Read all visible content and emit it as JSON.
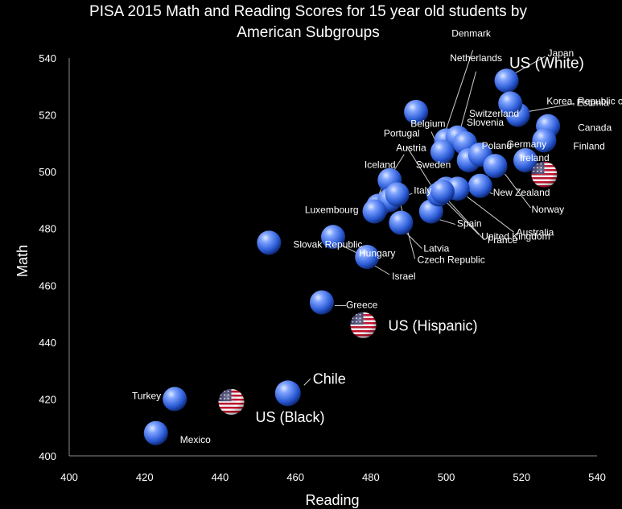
{
  "chart_data": {
    "type": "scatter",
    "title": "PISA 2015 Math and Reading Scores for 15 year old students by American Subgroups",
    "title_lines": [
      "PISA 2015 Math and Reading Scores for 15 year old students by",
      "American Subgroups"
    ],
    "xlabel": "Reading",
    "ylabel": "Math",
    "xlim": [
      400,
      540
    ],
    "ylim": [
      400,
      540
    ],
    "xticks": [
      400,
      420,
      440,
      460,
      480,
      500,
      520,
      540
    ],
    "yticks": [
      400,
      420,
      440,
      460,
      480,
      500,
      520,
      540
    ],
    "grid": false,
    "colors": {
      "background": "#000000",
      "text": "#ffffff",
      "bubble_light": "#a8c4ff",
      "bubble_mid": "#3b6fe0",
      "bubble_dark": "#0d2a78",
      "flag_red": "#c8102e",
      "flag_white": "#ffffff",
      "flag_blue": "#3c3b6e"
    },
    "points": [
      {
        "label": "US (White)",
        "x": 526,
        "y": 499,
        "us": true,
        "big": true
      },
      {
        "label": "US (Hispanic)",
        "x": 478,
        "y": 446,
        "us": true,
        "big": true
      },
      {
        "label": "US (Black)",
        "x": 443,
        "y": 419,
        "us": true,
        "big": true
      },
      {
        "label": "Chile",
        "x": 458,
        "y": 422,
        "big": true
      },
      {
        "label": "Denmark",
        "x": 500,
        "y": 511
      },
      {
        "label": "Japan",
        "x": 516,
        "y": 532
      },
      {
        "label": "Estonia",
        "x": 519,
        "y": 520
      },
      {
        "label": "Korea, Republic of",
        "x": 517,
        "y": 524
      },
      {
        "label": "Netherlands",
        "x": 503,
        "y": 512
      },
      {
        "label": "Switzerland",
        "x": 492,
        "y": 521
      },
      {
        "label": "Slovenia",
        "x": 505,
        "y": 510
      },
      {
        "label": "Canada",
        "x": 527,
        "y": 516
      },
      {
        "label": "Finland",
        "x": 526,
        "y": 511
      },
      {
        "label": "Ireland",
        "x": 521,
        "y": 504
      },
      {
        "label": "Belgium",
        "x": 499,
        "y": 507
      },
      {
        "label": "Poland",
        "x": 506,
        "y": 504
      },
      {
        "label": "Portugal",
        "x": 498,
        "y": 492
      },
      {
        "label": "Germany",
        "x": 509,
        "y": 506
      },
      {
        "label": "Austria",
        "x": 485,
        "y": 497
      },
      {
        "label": "New Zealand",
        "x": 509,
        "y": 495
      },
      {
        "label": "Iceland",
        "x": 482,
        "y": 488
      },
      {
        "label": "Sweden",
        "x": 500,
        "y": 494
      },
      {
        "label": "Norway",
        "x": 513,
        "y": 502
      },
      {
        "label": "Italy",
        "x": 485,
        "y": 490
      },
      {
        "label": "Spain",
        "x": 496,
        "y": 486
      },
      {
        "label": "United Kingdom",
        "x": 498,
        "y": 492
      },
      {
        "label": "Australia",
        "x": 503,
        "y": 494
      },
      {
        "label": "France",
        "x": 499,
        "y": 493
      },
      {
        "label": "Luxembourg",
        "x": 481,
        "y": 486
      },
      {
        "label": "Latvia",
        "x": 488,
        "y": 482
      },
      {
        "label": "Czech Republic",
        "x": 487,
        "y": 492
      },
      {
        "label": "Hungary",
        "x": 470,
        "y": 477
      },
      {
        "label": "Slovak Republic",
        "x": 453,
        "y": 475
      },
      {
        "label": "Israel",
        "x": 479,
        "y": 470
      },
      {
        "label": "Greece",
        "x": 467,
        "y": 454
      },
      {
        "label": "Turkey",
        "x": 428,
        "y": 420
      },
      {
        "label": "Mexico",
        "x": 423,
        "y": 408
      }
    ]
  }
}
